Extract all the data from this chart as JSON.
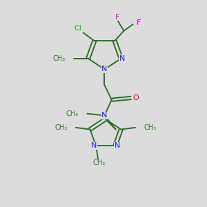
{
  "background_color": "#dcdcdc",
  "bond_color": "#2d6e2d",
  "N_color": "#1a1aff",
  "O_color": "#dd0000",
  "Cl_color": "#00bb00",
  "F_color": "#cc00cc",
  "bond_lw": 1.4,
  "figsize": [
    3.0,
    3.0
  ],
  "dpi": 100,
  "xlim": [
    0,
    10
  ],
  "ylim": [
    0,
    11
  ]
}
